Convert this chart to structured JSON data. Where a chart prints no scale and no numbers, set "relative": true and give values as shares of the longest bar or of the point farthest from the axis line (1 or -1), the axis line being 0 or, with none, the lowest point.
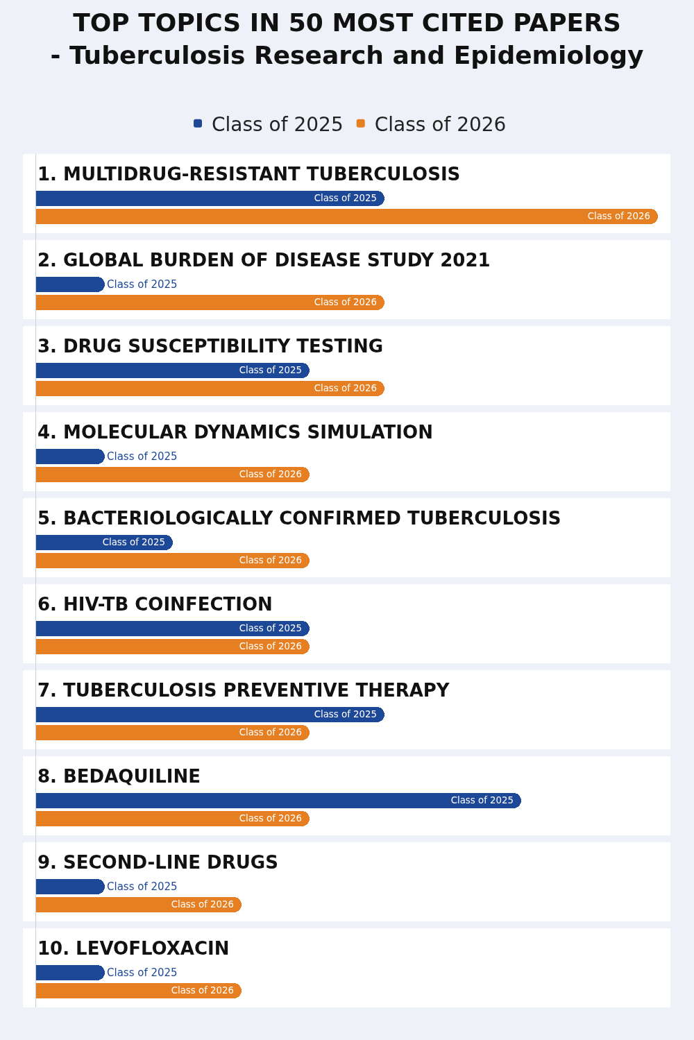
{
  "chart_data": {
    "type": "bar",
    "orientation": "horizontal",
    "relative": true,
    "title": "TOP TOPICS IN 50 MOST CITED PAPERS\n- Tuberculosis Research and Epidemiology",
    "categories": [
      "1. MULTIDRUG-RESISTANT TUBERCULOSIS",
      "2. GLOBAL BURDEN OF DISEASE STUDY 2021",
      "3. DRUG SUSCEPTIBILITY TESTING",
      "4. MOLECULAR DYNAMICS SIMULATION",
      "5. BACTERIOLOGICALLY CONFIRMED TUBERCULOSIS",
      "6. HIV-TB COINFECTION",
      "7. TUBERCULOSIS PREVENTIVE THERAPY",
      "8. BEDAQUILINE",
      "9. SECOND-LINE DRUGS",
      "10. LEVOFLOXACIN"
    ],
    "series": [
      {
        "name": "Class of 2025",
        "color": "#1d4797",
        "values": [
          0.56,
          0.11,
          0.44,
          0.11,
          0.22,
          0.44,
          0.56,
          0.78,
          0.11,
          0.11
        ]
      },
      {
        "name": "Class of 2026",
        "color": "#e67f22",
        "values": [
          1,
          0.56,
          0.56,
          0.44,
          0.44,
          0.44,
          0.44,
          0.44,
          0.33,
          0.33
        ]
      }
    ],
    "legend": "top"
  }
}
